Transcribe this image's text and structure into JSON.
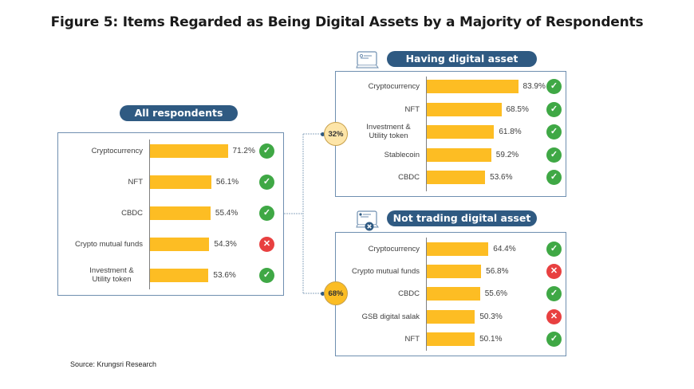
{
  "title": "Figure 5: Items Regarded as Being Digital Assets by a Majority of Respondents",
  "source": "Source: Krungsri Research",
  "colors": {
    "bar": "#fdbd23",
    "pill": "#2f5a82",
    "yes": "#3fa845",
    "no": "#e84040",
    "circle_light": "#fde5a8",
    "circle_dark": "#fbbd24"
  },
  "chart_data": [
    {
      "type": "bar",
      "orientation": "horizontal",
      "title": "All respondents",
      "unit": "%",
      "categories": [
        "Cryptocurrency",
        "NFT",
        "CBDC",
        "Crypto mutual funds",
        "Investment & Utility token"
      ],
      "values": [
        71.2,
        56.1,
        55.4,
        54.3,
        53.6
      ],
      "labels": [
        "71.2%",
        "56.1%",
        "55.4%",
        "54.3%",
        "53.6%"
      ],
      "is_digital_asset": [
        true,
        true,
        true,
        false,
        true
      ]
    },
    {
      "type": "bar",
      "orientation": "horizontal",
      "title": "Having digital asset account",
      "share_of_respondents": "32%",
      "unit": "%",
      "categories": [
        "Cryptocurrency",
        "NFT",
        "Investment & Utility token",
        "Stablecoin",
        "CBDC"
      ],
      "values": [
        83.9,
        68.5,
        61.8,
        59.2,
        53.6
      ],
      "labels": [
        "83.9%",
        "68.5%",
        "61.8%",
        "59.2%",
        "53.6%"
      ],
      "is_digital_asset": [
        true,
        true,
        true,
        true,
        true
      ]
    },
    {
      "type": "bar",
      "orientation": "horizontal",
      "title": "Not trading digital asset",
      "share_of_respondents": "68%",
      "unit": "%",
      "categories": [
        "Cryptocurrency",
        "Crypto mutual funds",
        "CBDC",
        "GSB digital salak",
        "NFT"
      ],
      "values": [
        64.4,
        56.8,
        55.6,
        50.3,
        50.1
      ],
      "labels": [
        "64.4%",
        "56.8%",
        "55.6%",
        "50.3%",
        "50.1%"
      ],
      "is_digital_asset": [
        true,
        false,
        true,
        false,
        true
      ]
    }
  ],
  "icons": {
    "yes": "check-icon",
    "no": "cross-icon",
    "account": "account-card-icon",
    "not_trading": "account-card-cross-icon"
  }
}
